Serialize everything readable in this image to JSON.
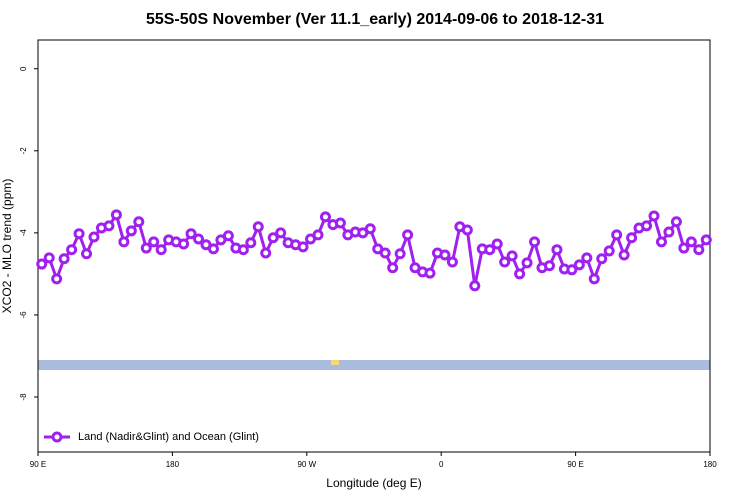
{
  "chart_data": {
    "type": "line",
    "title": "55S-50S November (Ver 11.1_early)   2014-09-06 to 2018-12-31",
    "x_label": "Longitude (deg E)",
    "y_label": "XCO2 - MLO trend (ppm)",
    "xlim": [
      90,
      540
    ],
    "ylim": [
      -9.34,
      0.7
    ],
    "xticks": [
      {
        "value": 90,
        "label": "90 E"
      },
      {
        "value": 180,
        "label": "180"
      },
      {
        "value": 270,
        "label": "90 W"
      },
      {
        "value": 360,
        "label": "0"
      },
      {
        "value": 450,
        "label": "90 E"
      },
      {
        "value": 540,
        "label": "180"
      }
    ],
    "yticks": [
      0,
      -2,
      -4,
      -6,
      -8
    ],
    "legend": "bottom-left",
    "series": [
      {
        "name": "Land (Nadir&Glint) and Ocean (Glint)",
        "color": "#a020f0",
        "x": [
          92.5,
          97.5,
          102.5,
          107.5,
          112.5,
          117.5,
          122.5,
          127.5,
          132.5,
          137.5,
          142.5,
          147.5,
          152.5,
          157.5,
          162.5,
          167.5,
          172.5,
          177.5,
          182.5,
          187.5,
          192.5,
          197.5,
          202.5,
          207.5,
          212.5,
          217.5,
          222.5,
          227.5,
          232.5,
          237.5,
          242.5,
          247.5,
          252.5,
          257.5,
          262.5,
          267.5,
          272.5,
          277.5,
          282.5,
          287.5,
          292.5,
          297.5,
          302.5,
          307.5,
          312.5,
          317.5,
          322.5,
          327.5,
          332.5,
          337.5,
          342.5,
          347.5,
          352.5,
          357.5,
          362.5,
          367.5,
          372.5,
          377.5,
          382.5,
          387.5,
          392.5,
          397.5,
          402.5,
          407.5,
          412.5,
          417.5,
          422.5,
          427.5,
          432.5,
          437.5,
          442.5,
          447.5,
          452.5,
          457.5,
          462.5,
          467.5,
          472.5,
          477.5,
          482.5,
          487.5,
          492.5,
          497.5,
          502.5,
          507.5,
          512.5,
          517.5,
          522.5,
          527.5,
          532.5,
          537.5
        ],
        "values": [
          -4.76,
          -4.61,
          -5.12,
          -4.63,
          -4.41,
          -4.02,
          -4.51,
          -4.1,
          -3.88,
          -3.83,
          -3.56,
          -4.22,
          -3.95,
          -3.73,
          -4.37,
          -4.22,
          -4.41,
          -4.17,
          -4.22,
          -4.27,
          -4.02,
          -4.15,
          -4.29,
          -4.39,
          -4.17,
          -4.07,
          -4.37,
          -4.41,
          -4.24,
          -3.85,
          -4.49,
          -4.12,
          -4.0,
          -4.24,
          -4.29,
          -4.34,
          -4.15,
          -4.05,
          -3.61,
          -3.8,
          -3.76,
          -4.05,
          -3.98,
          -4.0,
          -3.9,
          -4.39,
          -4.49,
          -4.85,
          -4.51,
          -4.05,
          -4.85,
          -4.95,
          -4.98,
          -4.49,
          -4.54,
          -4.71,
          -3.85,
          -3.93,
          -5.29,
          -4.39,
          -4.41,
          -4.27,
          -4.71,
          -4.56,
          -5.0,
          -4.73,
          -4.22,
          -4.85,
          -4.8,
          -4.41,
          -4.88,
          -4.9,
          -4.78,
          -4.61,
          -5.12,
          -4.63,
          -4.44,
          -4.05,
          -4.54,
          -4.12,
          -3.88,
          -3.83,
          -3.59,
          -4.22,
          -3.98,
          -3.73,
          -4.37,
          -4.22,
          -4.41,
          -4.17
        ]
      }
    ]
  }
}
